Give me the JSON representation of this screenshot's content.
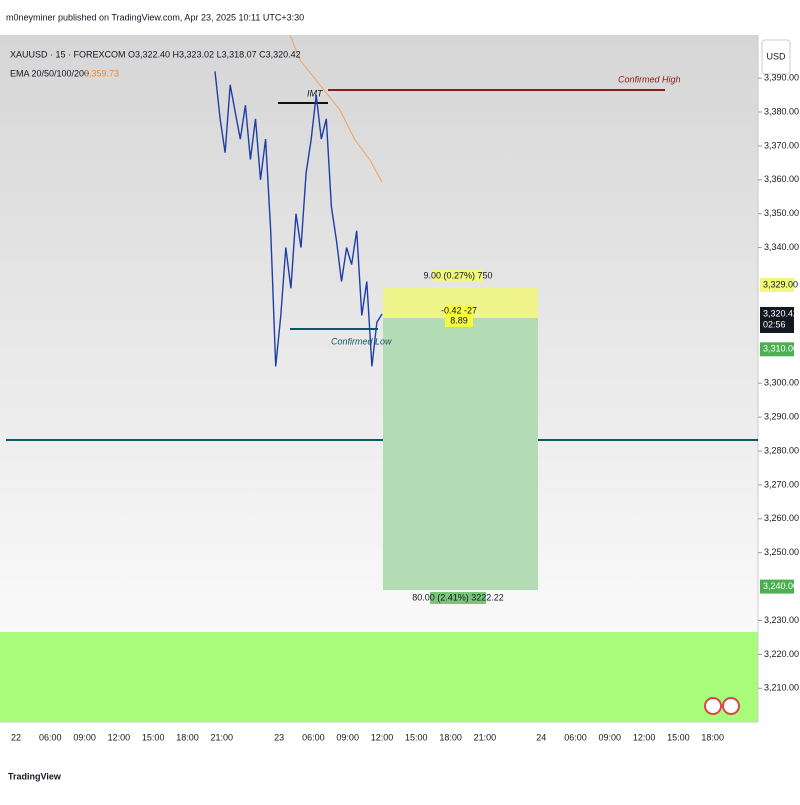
{
  "header": {
    "publisher": "m0neyminer published on TradingView.com, Apr 23, 2025 10:11 UTC+3:30"
  },
  "legend": {
    "symbol": "XAUUSD · 15 · FOREXCOM",
    "ohlc": "O3,322.40 H3,323.02 L3,318.07 C3,320.42",
    "ema_name": "EMA 20/50/100/200",
    "ema_value": "3,359.73"
  },
  "currency": "USD",
  "price_axis": {
    "ticks": [
      {
        "value": 3390,
        "label": "3,390.00"
      },
      {
        "value": 3380,
        "label": "3,380.00"
      },
      {
        "value": 3370,
        "label": "3,370.00"
      },
      {
        "value": 3360,
        "label": "3,360.00"
      },
      {
        "value": 3350,
        "label": "3,350.00"
      },
      {
        "value": 3340,
        "label": "3,340.00"
      },
      {
        "value": 3300,
        "label": "3,300.00"
      },
      {
        "value": 3290,
        "label": "3,290.00"
      },
      {
        "value": 3280,
        "label": "3,280.00"
      },
      {
        "value": 3270,
        "label": "3,270.00"
      },
      {
        "value": 3260,
        "label": "3,260.00"
      },
      {
        "value": 3250,
        "label": "3,250.00"
      },
      {
        "value": 3230,
        "label": "3,230.00"
      },
      {
        "value": 3220,
        "label": "3,220.00"
      },
      {
        "value": 3210,
        "label": "3,210.00"
      }
    ]
  },
  "price_labels": {
    "target": {
      "value": 3329,
      "label": "3,329.00"
    },
    "last": {
      "value": 3320.42,
      "label": "3,320.42",
      "countdown": "02:56"
    },
    "mid": {
      "value": 3310,
      "label": "3,310.00"
    },
    "stop": {
      "value": 3240,
      "label": "3,240.00"
    }
  },
  "time_axis": [
    "22",
    "06:00",
    "09:00",
    "12:00",
    "15:00",
    "18:00",
    "21:00",
    "23",
    "06:00",
    "09:00",
    "12:00",
    "15:00",
    "18:00",
    "21:00",
    "24",
    "06:00",
    "09:00",
    "12:00",
    "15:00",
    "18:00"
  ],
  "price_trace": {
    "values": [
      3392,
      3378,
      3368,
      3388,
      3380,
      3372,
      3382,
      3366,
      3378,
      3360,
      3372,
      3345,
      3305,
      3320,
      3340,
      3328,
      3350,
      3340,
      3362,
      3372,
      3385,
      3372,
      3378,
      3352,
      3342,
      3330,
      3340,
      3335,
      3345,
      3320,
      3330,
      3305,
      3318,
      3320.42
    ]
  },
  "annotations": {
    "imt": "IMT",
    "confirmed_high": "Confirmed High",
    "confirmed_low": "Confirmed Low"
  },
  "position": {
    "target_label": "9.00 (0.27%) 750",
    "entry_label_1": "-0.42 -27",
    "entry_label_2": "8.89",
    "stop_label": "80.00 (2.41%) 3222.22"
  },
  "footer": {
    "brand": "TradingView"
  }
}
